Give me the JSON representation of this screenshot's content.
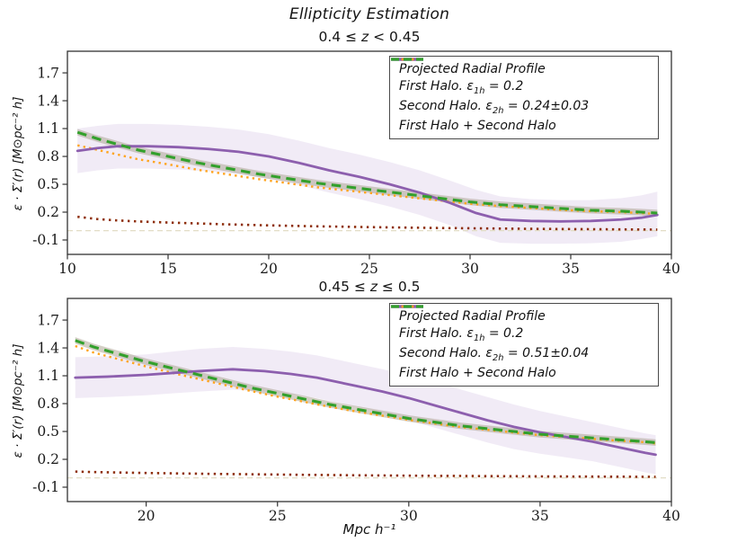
{
  "figure": {
    "title": "Ellipticity Estimation",
    "xlabel": "Mpc h⁻¹",
    "ylabel": "ε · Σ′(r) [M⊙pc⁻² h]"
  },
  "colors": {
    "profile": "#8d5fae",
    "profile_band": "#9467bd",
    "first_halo": "#8e2f0c",
    "second_halo": "#ffa41e",
    "combined": "#33a02c",
    "combined_band": "#a89f8c",
    "zero_line": "#e2ddc6",
    "axis": "#333333",
    "text": "#1a1a1a"
  },
  "chart_data": [
    {
      "type": "line",
      "title": {
        "pre": "0.4 ≤ ",
        "z": "z",
        "post": " < 0.45"
      },
      "xlim": [
        10,
        40
      ],
      "ylim": [
        -0.255,
        1.933
      ],
      "xticks": [
        10,
        15,
        20,
        25,
        30,
        35,
        40
      ],
      "yticks": [
        1.7,
        1.4,
        1.1,
        0.8,
        0.5,
        0.2,
        -0.1
      ],
      "zero_line_y": 0,
      "band": {
        "x": [
          10.5,
          11.5,
          12.5,
          14,
          15.5,
          17,
          18.5,
          20,
          21.5,
          23,
          24.5,
          26,
          27.5,
          29,
          30.3,
          31.5,
          33,
          34.5,
          36,
          37.5,
          38.5,
          39.3
        ],
        "hi": [
          1.1,
          1.13,
          1.15,
          1.15,
          1.14,
          1.12,
          1.09,
          1.04,
          0.97,
          0.89,
          0.82,
          0.74,
          0.65,
          0.54,
          0.44,
          0.37,
          0.34,
          0.33,
          0.33,
          0.35,
          0.38,
          0.42
        ],
        "lo": [
          0.62,
          0.65,
          0.67,
          0.67,
          0.66,
          0.64,
          0.61,
          0.56,
          0.49,
          0.41,
          0.34,
          0.26,
          0.17,
          0.06,
          -0.06,
          -0.13,
          -0.14,
          -0.14,
          -0.135,
          -0.12,
          -0.09,
          -0.06
        ]
      },
      "series": [
        {
          "name": "First Halo",
          "role": "first_halo",
          "x": [
            10.5,
            11.5,
            12.5,
            13.5,
            15,
            16.5,
            18,
            19.5,
            21,
            22.5,
            24,
            25.5,
            27,
            28.5,
            30,
            31.5,
            33,
            34.5,
            36,
            37.5,
            38.5,
            39.3
          ],
          "y": [
            0.15,
            0.125,
            0.11,
            0.1,
            0.088,
            0.078,
            0.068,
            0.06,
            0.053,
            0.047,
            0.042,
            0.037,
            0.033,
            0.029,
            0.026,
            0.023,
            0.02,
            0.018,
            0.016,
            0.014,
            0.013,
            0.012
          ]
        },
        {
          "name": "Second Halo",
          "role": "second_halo",
          "x": [
            10.5,
            11.5,
            12.5,
            13.5,
            15,
            16.5,
            18,
            19.5,
            21,
            22.5,
            24,
            25.5,
            27,
            28.5,
            30,
            31.5,
            33,
            34.5,
            36,
            37.5,
            38.5,
            39.3
          ],
          "y": [
            0.92,
            0.87,
            0.82,
            0.77,
            0.715,
            0.655,
            0.605,
            0.555,
            0.51,
            0.465,
            0.43,
            0.395,
            0.36,
            0.325,
            0.29,
            0.265,
            0.245,
            0.225,
            0.21,
            0.2,
            0.19,
            0.18
          ]
        },
        {
          "name": "Projected Radial Profile",
          "role": "profile",
          "x": [
            10.5,
            11.5,
            12.5,
            14,
            15.5,
            17,
            18.5,
            20,
            21.5,
            23,
            24.5,
            26,
            27.5,
            29,
            30.3,
            31.5,
            33,
            34.5,
            36,
            37.5,
            38.5,
            39.3
          ],
          "y": [
            0.86,
            0.89,
            0.91,
            0.91,
            0.9,
            0.88,
            0.85,
            0.8,
            0.73,
            0.65,
            0.58,
            0.5,
            0.41,
            0.3,
            0.19,
            0.12,
            0.105,
            0.1,
            0.105,
            0.12,
            0.14,
            0.17
          ]
        },
        {
          "name": "First Halo + Second Halo",
          "role": "combined",
          "x": [
            10.5,
            11.5,
            12.5,
            13.5,
            15,
            16.5,
            18,
            19.5,
            21,
            22.5,
            24,
            25.5,
            27,
            28.5,
            30,
            31.5,
            33,
            34.5,
            36,
            37.5,
            38.5,
            39.3
          ],
          "y": [
            1.06,
            0.99,
            0.93,
            0.87,
            0.8,
            0.73,
            0.67,
            0.61,
            0.56,
            0.51,
            0.47,
            0.43,
            0.39,
            0.35,
            0.31,
            0.28,
            0.26,
            0.24,
            0.22,
            0.21,
            0.2,
            0.19
          ]
        }
      ],
      "legend": [
        {
          "pre": "Projected Radial Profile",
          "sub": "",
          "post": "",
          "style": "solid",
          "color_key": "profile"
        },
        {
          "pre": "First Halo.  ε",
          "sub": "1h",
          "post": " = 0.2",
          "style": "dotted",
          "color_key": "first_halo"
        },
        {
          "pre": "Second Halo.  ε",
          "sub": "2h",
          "post": " = 0.24±0.03",
          "style": "dotted",
          "color_key": "second_halo"
        },
        {
          "pre": "First Halo + Second Halo",
          "sub": "",
          "post": "",
          "style": "dashed",
          "color_key": "combined"
        }
      ]
    },
    {
      "type": "line",
      "title": {
        "pre": "0.45 ≤ ",
        "z": "z",
        "post": " ≤ 0.5"
      },
      "xlim": [
        17,
        40
      ],
      "ylim": [
        -0.255,
        1.933
      ],
      "xticks": [
        20,
        25,
        30,
        35,
        40
      ],
      "yticks": [
        1.7,
        1.4,
        1.1,
        0.8,
        0.5,
        0.2,
        -0.1
      ],
      "zero_line_y": 0,
      "band": {
        "x": [
          17.3,
          18.5,
          20,
          21,
          22,
          23.3,
          24.5,
          25.5,
          26.5,
          28,
          29,
          30,
          31,
          32,
          33,
          34,
          35,
          36,
          37,
          38,
          39,
          39.4
        ],
        "hi": [
          1.3,
          1.31,
          1.33,
          1.36,
          1.39,
          1.41,
          1.39,
          1.36,
          1.32,
          1.23,
          1.17,
          1.1,
          1.03,
          0.95,
          0.87,
          0.79,
          0.72,
          0.66,
          0.6,
          0.54,
          0.48,
          0.46
        ],
        "lo": [
          0.86,
          0.87,
          0.89,
          0.91,
          0.93,
          0.95,
          0.93,
          0.9,
          0.86,
          0.77,
          0.7,
          0.62,
          0.54,
          0.46,
          0.38,
          0.31,
          0.26,
          0.22,
          0.18,
          0.12,
          0.06,
          0.04
        ]
      },
      "series": [
        {
          "name": "First Halo",
          "role": "first_halo",
          "x": [
            17.3,
            18,
            19,
            20,
            21,
            22,
            23,
            24,
            25,
            26,
            27,
            28,
            29,
            30,
            31,
            32,
            33,
            34,
            35,
            36,
            37,
            38,
            39,
            39.4
          ],
          "y": [
            0.068,
            0.063,
            0.058,
            0.053,
            0.049,
            0.045,
            0.042,
            0.039,
            0.036,
            0.033,
            0.031,
            0.028,
            0.026,
            0.024,
            0.022,
            0.021,
            0.019,
            0.018,
            0.016,
            0.015,
            0.014,
            0.013,
            0.012,
            0.012
          ]
        },
        {
          "name": "Second Halo",
          "role": "second_halo",
          "x": [
            17.3,
            18,
            19,
            20,
            21,
            22,
            23,
            24,
            25,
            26,
            27,
            28,
            29,
            30,
            31,
            32,
            33,
            34,
            35,
            36,
            37,
            38,
            39,
            39.4
          ],
          "y": [
            1.42,
            1.35,
            1.275,
            1.2,
            1.13,
            1.065,
            1.0,
            0.935,
            0.875,
            0.82,
            0.765,
            0.715,
            0.67,
            0.625,
            0.585,
            0.547,
            0.518,
            0.489,
            0.46,
            0.44,
            0.42,
            0.4,
            0.385,
            0.37
          ]
        },
        {
          "name": "Projected Radial Profile",
          "role": "profile",
          "x": [
            17.3,
            18.5,
            20,
            21,
            22,
            23.3,
            24.5,
            25.5,
            26.5,
            28,
            29,
            30,
            31,
            32,
            33,
            34,
            35,
            36,
            37,
            38,
            39,
            39.4
          ],
          "y": [
            1.08,
            1.09,
            1.11,
            1.13,
            1.15,
            1.17,
            1.15,
            1.12,
            1.08,
            0.99,
            0.93,
            0.86,
            0.78,
            0.7,
            0.62,
            0.55,
            0.49,
            0.44,
            0.39,
            0.33,
            0.27,
            0.25
          ]
        },
        {
          "name": "First Halo + Second Halo",
          "role": "combined",
          "x": [
            17.3,
            18,
            19,
            20,
            21,
            22,
            23,
            24,
            25,
            26,
            27,
            28,
            29,
            30,
            31,
            32,
            33,
            34,
            35,
            36,
            37,
            38,
            39,
            39.4
          ],
          "y": [
            1.48,
            1.41,
            1.33,
            1.25,
            1.18,
            1.11,
            1.04,
            0.97,
            0.91,
            0.85,
            0.79,
            0.74,
            0.69,
            0.64,
            0.6,
            0.56,
            0.53,
            0.5,
            0.47,
            0.45,
            0.43,
            0.41,
            0.39,
            0.38
          ]
        }
      ],
      "legend": [
        {
          "pre": "Projected Radial Profile",
          "sub": "",
          "post": "",
          "style": "solid",
          "color_key": "profile"
        },
        {
          "pre": "First Halo.  ε",
          "sub": "1h",
          "post": " = 0.2",
          "style": "dotted",
          "color_key": "first_halo"
        },
        {
          "pre": "Second Halo.  ε",
          "sub": "2h",
          "post": " = 0.51±0.04",
          "style": "dotted",
          "color_key": "second_halo"
        },
        {
          "pre": "First Halo + Second Halo",
          "sub": "",
          "post": "",
          "style": "dashed",
          "color_key": "combined"
        }
      ]
    }
  ]
}
